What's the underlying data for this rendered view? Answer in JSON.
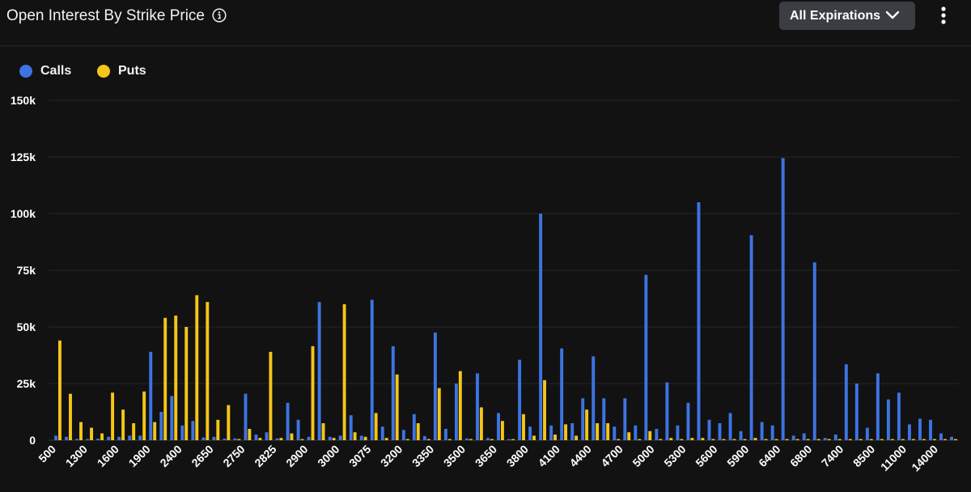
{
  "header": {
    "title": "Open Interest By Strike Price",
    "expiration_label": "All Expirations"
  },
  "icons": {
    "info": "info-icon",
    "dropdown": "chevron-down-icon",
    "menu": "more-vertical-icon"
  },
  "colors": {
    "calls": "#3d74e3",
    "puts": "#f5c518",
    "background": "#121212",
    "grid": "#262626",
    "text": "#ffffff"
  },
  "chart_data": {
    "type": "bar",
    "title": "Open Interest By Strike Price",
    "xlabel": "",
    "ylabel": "",
    "ylim": [
      0,
      150000
    ],
    "yticks": [
      0,
      25000,
      50000,
      75000,
      100000,
      125000,
      150000
    ],
    "ytick_labels": [
      "0",
      "25k",
      "50k",
      "75k",
      "100k",
      "125k",
      "150k"
    ],
    "xtick_labels": [
      "500",
      "1300",
      "1600",
      "1900",
      "2400",
      "2650",
      "2750",
      "2825",
      "2900",
      "3000",
      "3075",
      "3200",
      "3350",
      "3500",
      "3650",
      "3800",
      "4100",
      "4400",
      "4700",
      "5000",
      "5300",
      "5600",
      "5900",
      "6400",
      "6800",
      "7400",
      "8500",
      "11000",
      "14000"
    ],
    "legend_position": "top-left",
    "grid": true,
    "series": [
      {
        "name": "Calls",
        "values": [
          2000,
          1500,
          600,
          500,
          700,
          1500,
          1500,
          2000,
          2000,
          39000,
          12500,
          19500,
          6500,
          8500,
          1200,
          1500,
          700,
          800,
          20500,
          2500,
          3500,
          800,
          16500,
          9000,
          1500,
          61000,
          1500,
          2000,
          11000,
          2000,
          62000,
          6000,
          41500,
          4500,
          11500,
          1800,
          47500,
          5000,
          25000,
          800,
          29500,
          1000,
          12000,
          500,
          35500,
          6000,
          100000,
          6500,
          40500,
          7500,
          18500,
          37000,
          18500,
          6000,
          18500,
          6500,
          73000,
          5000,
          25500,
          6500,
          16500,
          105000,
          9000,
          7500,
          12000,
          4000,
          90500,
          8000,
          6500,
          124500,
          2000,
          3000,
          78500,
          1000,
          2500,
          33500,
          25000,
          5500,
          29500,
          18000,
          21000,
          7000,
          9500,
          9000,
          3000,
          1500
        ]
      },
      {
        "name": "Puts",
        "values": [
          44000,
          20500,
          8000,
          5500,
          3000,
          21000,
          13500,
          7500,
          21500,
          8000,
          54000,
          55000,
          50000,
          64000,
          61000,
          9000,
          15500,
          500,
          5000,
          1000,
          39000,
          1000,
          3000,
          500,
          41500,
          7500,
          1000,
          60000,
          3500,
          1500,
          12000,
          1000,
          29000,
          500,
          7500,
          500,
          23000,
          500,
          30500,
          500,
          14500,
          500,
          8500,
          500,
          11500,
          2000,
          26500,
          2500,
          7000,
          2000,
          13500,
          7500,
          7500,
          500,
          3500,
          500,
          4000,
          500,
          1000,
          500,
          1000,
          1000,
          500,
          500,
          500,
          500,
          1000,
          500,
          500,
          500,
          500,
          500,
          500,
          500,
          500,
          500,
          500,
          500,
          500,
          500,
          500,
          500,
          500,
          500,
          500,
          500
        ]
      }
    ]
  }
}
